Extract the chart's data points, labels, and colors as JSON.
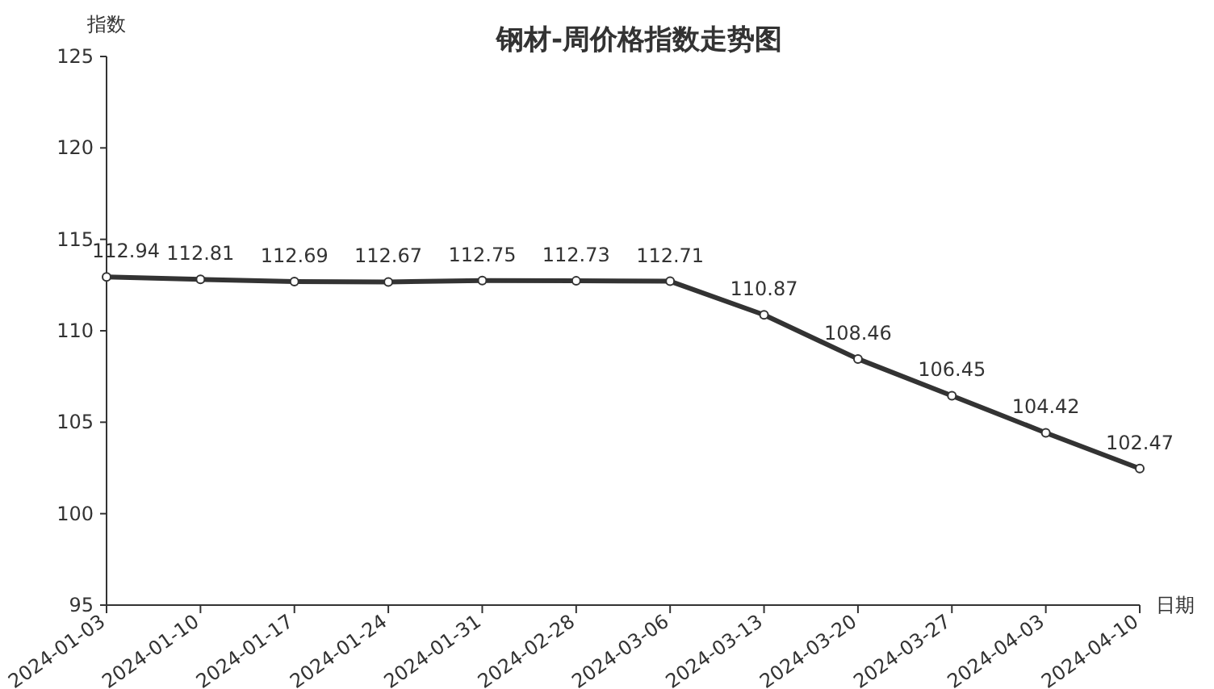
{
  "chart_data": {
    "type": "line",
    "title": "钢材-周价格指数走势图",
    "xlabel": "日期",
    "ylabel": "指数",
    "categories": [
      "2024-01-03",
      "2024-01-10",
      "2024-01-17",
      "2024-01-24",
      "2024-01-31",
      "2024-02-28",
      "2024-03-06",
      "2024-03-13",
      "2024-03-20",
      "2024-03-27",
      "2024-04-03",
      "2024-04-10"
    ],
    "series": [
      {
        "color": "#333333",
        "values": [
          112.94,
          112.81,
          112.69,
          112.67,
          112.75,
          112.73,
          112.71,
          110.87,
          108.46,
          106.45,
          104.42,
          102.47
        ]
      }
    ],
    "ylim": [
      95,
      125
    ],
    "yticks": [
      95,
      100,
      105,
      110,
      115,
      120,
      125
    ],
    "data_labels": true,
    "marker": "circle",
    "grid": false
  }
}
